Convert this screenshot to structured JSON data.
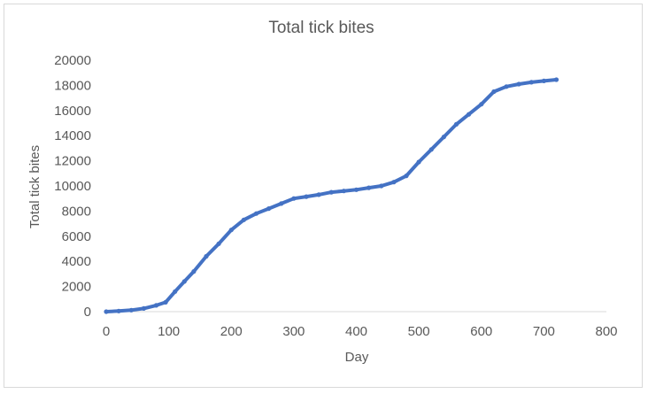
{
  "chart_data": {
    "type": "line",
    "title": "Total tick bites",
    "xlabel": "Day",
    "ylabel": "Total tick bites",
    "xlim": [
      0,
      800
    ],
    "ylim": [
      0,
      20000
    ],
    "x_ticks": [
      "0",
      "100",
      "200",
      "300",
      "400",
      "500",
      "600",
      "700",
      "800"
    ],
    "y_ticks": [
      "0",
      "2000",
      "4000",
      "6000",
      "8000",
      "10000",
      "12000",
      "14000",
      "16000",
      "18000",
      "20000"
    ],
    "grid": false,
    "legend": "none",
    "series_color": "#4472c4",
    "series": [
      {
        "x": [
          0,
          20,
          40,
          60,
          80,
          95,
          110,
          125,
          140,
          160,
          180,
          200,
          220,
          240,
          260,
          280,
          300,
          320,
          340,
          360,
          380,
          400,
          420,
          440,
          460,
          480,
          500,
          520,
          540,
          560,
          580,
          600,
          620,
          640,
          660,
          680,
          700,
          720
        ],
        "y": [
          0,
          50,
          120,
          250,
          500,
          750,
          1600,
          2400,
          3200,
          4400,
          5400,
          6500,
          7300,
          7800,
          8200,
          8600,
          9000,
          9150,
          9300,
          9500,
          9600,
          9700,
          9850,
          10000,
          10300,
          10800,
          11900,
          12900,
          13900,
          14900,
          15700,
          16500,
          17500,
          17900,
          18100,
          18250,
          18350,
          18450
        ]
      }
    ]
  }
}
